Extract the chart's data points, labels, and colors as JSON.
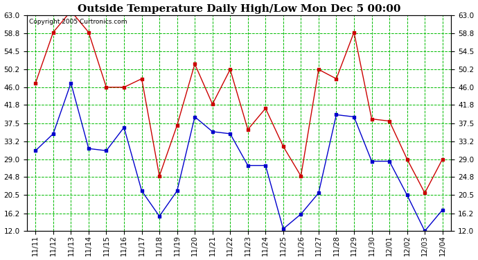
{
  "title": "Outside Temperature Daily High/Low Mon Dec 5 00:00",
  "copyright": "Copyright 2005 Curtronics.com",
  "x_labels": [
    "11/11",
    "11/12",
    "11/13",
    "11/14",
    "11/15",
    "11/16",
    "11/17",
    "11/18",
    "11/19",
    "11/20",
    "11/21",
    "11/22",
    "11/23",
    "11/24",
    "11/25",
    "11/26",
    "11/27",
    "11/28",
    "11/29",
    "11/30",
    "12/01",
    "12/02",
    "12/03",
    "12/04"
  ],
  "high_values": [
    47.0,
    59.0,
    64.0,
    59.0,
    46.0,
    46.0,
    48.0,
    25.0,
    37.0,
    51.5,
    42.0,
    50.2,
    36.0,
    41.0,
    32.0,
    25.0,
    50.2,
    48.0,
    59.0,
    38.5,
    38.0,
    29.0,
    21.0,
    29.0
  ],
  "low_values": [
    31.0,
    35.0,
    47.0,
    31.5,
    31.0,
    36.5,
    21.5,
    15.5,
    21.5,
    39.0,
    35.5,
    35.0,
    27.5,
    27.5,
    12.5,
    16.0,
    21.0,
    39.5,
    39.0,
    28.5,
    28.5,
    20.5,
    12.0,
    17.0
  ],
  "high_color": "#cc0000",
  "low_color": "#0000cc",
  "bg_color": "#ffffff",
  "plot_bg_color": "#ffffff",
  "grid_color": "#00bb00",
  "border_color": "#000000",
  "title_fontsize": 11,
  "tick_fontsize": 7.5,
  "ylim": [
    12.0,
    63.0
  ],
  "yticks": [
    12.0,
    16.2,
    20.5,
    24.8,
    29.0,
    33.2,
    37.5,
    41.8,
    46.0,
    50.2,
    54.5,
    58.8,
    63.0
  ]
}
